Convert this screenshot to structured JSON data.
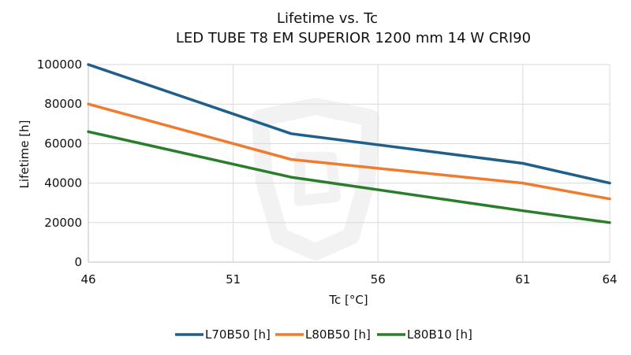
{
  "chart_data": {
    "type": "line",
    "title": "Lifetime vs. Tc",
    "subtitle": "LED TUBE T8 EM SUPERIOR 1200 mm 14 W CRI90",
    "xlabel": "Tc [°C]",
    "ylabel": "Lifetime [h]",
    "x_ticks": [
      46,
      51,
      56,
      61,
      64
    ],
    "y_ticks": [
      0,
      20000,
      40000,
      60000,
      80000,
      100000
    ],
    "xlim": [
      46,
      64
    ],
    "ylim": [
      0,
      100000
    ],
    "grid": true,
    "legend_position": "bottom",
    "series": [
      {
        "name": "L70B50 [h]",
        "color": "#1f5f8b",
        "points": [
          [
            46,
            100000
          ],
          [
            53,
            65000
          ],
          [
            61,
            50000
          ],
          [
            64,
            40000
          ]
        ]
      },
      {
        "name": "L80B50 [h]",
        "color": "#f07b2f",
        "points": [
          [
            46,
            80000
          ],
          [
            53,
            52000
          ],
          [
            61,
            40000
          ],
          [
            64,
            32000
          ]
        ]
      },
      {
        "name": "L80B10 [h]",
        "color": "#2a7d2a",
        "points": [
          [
            46,
            66000
          ],
          [
            53,
            43000
          ],
          [
            61,
            26000
          ],
          [
            64,
            20000
          ]
        ]
      }
    ]
  }
}
